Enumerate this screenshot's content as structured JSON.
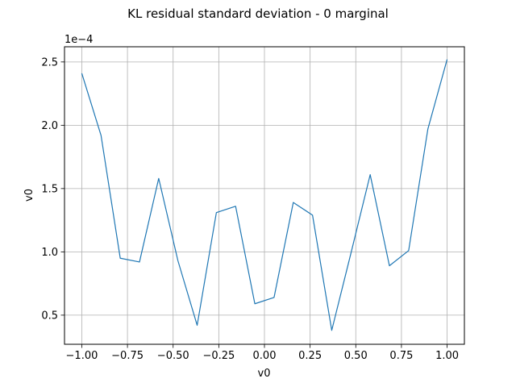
{
  "chart_data": {
    "type": "line",
    "title": "KL residual standard deviation - 0 marginal",
    "xlabel": "v0",
    "ylabel": "v0",
    "offset_label": "1e−4",
    "scale": 0.0001,
    "grid": true,
    "xlim": [
      -1.0947,
      1.0947
    ],
    "ylim": [
      0.27,
      2.62
    ],
    "xticks": [
      -1.0,
      -0.75,
      -0.5,
      -0.25,
      0.0,
      0.25,
      0.5,
      0.75,
      1.0
    ],
    "xtick_labels": [
      "−1.00",
      "−0.75",
      "−0.50",
      "−0.25",
      "0.00",
      "0.25",
      "0.50",
      "0.75",
      "1.00"
    ],
    "yticks": [
      0.5,
      1.0,
      1.5,
      2.0,
      2.5
    ],
    "ytick_labels": [
      "0.5",
      "1.0",
      "1.5",
      "2.0",
      "2.5"
    ],
    "series": [
      {
        "color": "#1f77b4",
        "x": [
          -1.0,
          -0.8947,
          -0.7895,
          -0.6842,
          -0.5789,
          -0.4737,
          -0.3684,
          -0.2632,
          -0.1579,
          -0.0526,
          0.0526,
          0.1579,
          0.2632,
          0.3684,
          0.4737,
          0.5789,
          0.6842,
          0.7895,
          0.8947,
          1.0
        ],
        "y": [
          2.41,
          1.92,
          0.95,
          0.92,
          1.58,
          0.93,
          0.42,
          1.31,
          1.36,
          0.59,
          0.64,
          1.39,
          1.29,
          0.38,
          0.99,
          1.61,
          0.89,
          1.01,
          1.97,
          2.52
        ]
      }
    ]
  }
}
